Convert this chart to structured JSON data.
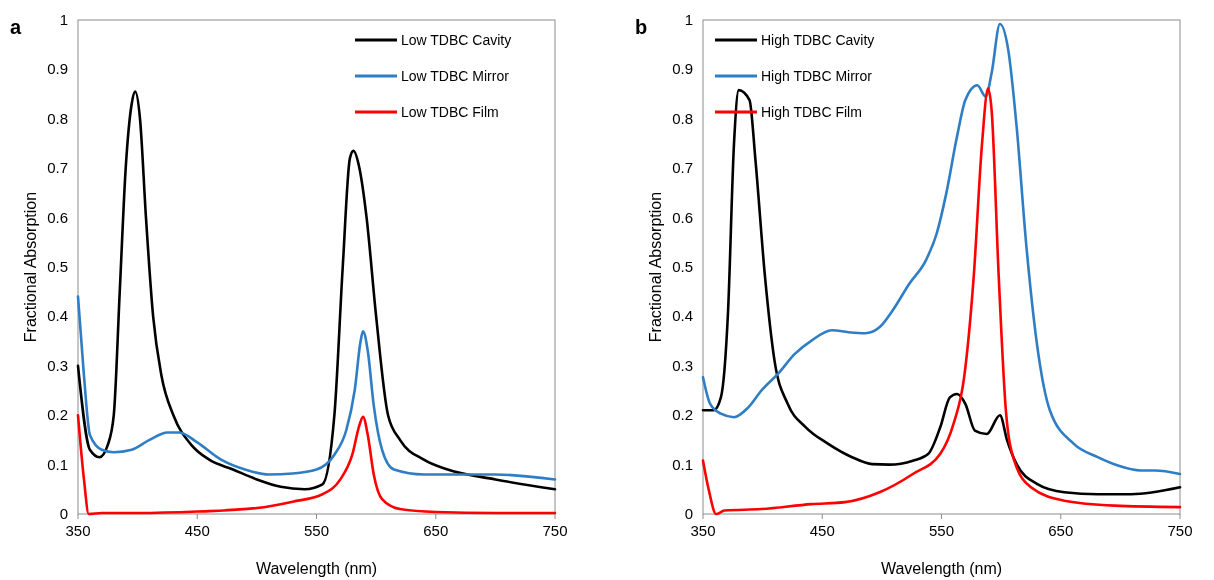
{
  "chart_data": [
    {
      "type": "line",
      "title": "a",
      "xlabel": "Wavelength (nm)",
      "ylabel": "Fractional Absorption",
      "xlim": [
        350,
        750
      ],
      "xticks": [
        350,
        450,
        550,
        650,
        750
      ],
      "ylim": [
        0,
        1
      ],
      "yticks": [
        0,
        0.1,
        0.2,
        0.3,
        0.4,
        0.5,
        0.6,
        0.7,
        0.8,
        0.9,
        1
      ],
      "legend": "top right",
      "series": [
        {
          "name": "Low TDBC Cavity",
          "color": "#000000",
          "x": [
            350,
            360,
            368,
            375,
            380,
            385,
            390,
            395,
            398,
            402,
            407,
            413,
            420,
            430,
            445,
            460,
            480,
            500,
            520,
            540,
            555,
            565,
            572,
            578,
            581,
            586,
            592,
            600,
            610,
            620,
            640,
            660,
            700,
            750
          ],
          "values": [
            0.3,
            0.13,
            0.115,
            0.14,
            0.2,
            0.45,
            0.7,
            0.83,
            0.855,
            0.8,
            0.6,
            0.4,
            0.28,
            0.2,
            0.14,
            0.11,
            0.09,
            0.07,
            0.055,
            0.05,
            0.06,
            0.2,
            0.5,
            0.72,
            0.735,
            0.7,
            0.6,
            0.4,
            0.2,
            0.15,
            0.11,
            0.09,
            0.07,
            0.05
          ]
        },
        {
          "name": "Low TDBC Mirror",
          "color": "#2f7ec5",
          "x": [
            350,
            355,
            360,
            370,
            380,
            395,
            410,
            425,
            435,
            450,
            470,
            490,
            510,
            530,
            550,
            565,
            575,
            582,
            587,
            589,
            593,
            598,
            605,
            615,
            640,
            700,
            750
          ],
          "values": [
            0.44,
            0.28,
            0.16,
            0.13,
            0.125,
            0.13,
            0.15,
            0.165,
            0.165,
            0.145,
            0.11,
            0.09,
            0.08,
            0.082,
            0.09,
            0.12,
            0.17,
            0.25,
            0.35,
            0.37,
            0.33,
            0.22,
            0.13,
            0.09,
            0.08,
            0.08,
            0.07
          ]
        },
        {
          "name": "Low TDBC Film",
          "color": "#ff0000",
          "x": [
            350,
            355,
            359,
            370,
            400,
            450,
            500,
            530,
            555,
            570,
            580,
            586,
            589,
            593,
            598,
            605,
            620,
            650,
            700,
            750
          ],
          "values": [
            0.2,
            0.07,
            0,
            0.002,
            0.002,
            0.005,
            0.012,
            0.025,
            0.04,
            0.07,
            0.12,
            0.18,
            0.197,
            0.16,
            0.08,
            0.03,
            0.01,
            0.004,
            0.002,
            0.002
          ]
        }
      ]
    },
    {
      "type": "line",
      "title": "b",
      "xlabel": "Wavelength (nm)",
      "ylabel": "Fractional Absorption",
      "xlim": [
        350,
        750
      ],
      "xticks": [
        350,
        450,
        550,
        650,
        750
      ],
      "ylim": [
        0,
        1
      ],
      "yticks": [
        0,
        0.1,
        0.2,
        0.3,
        0.4,
        0.5,
        0.6,
        0.7,
        0.8,
        0.9,
        1
      ],
      "legend": "top left",
      "series": [
        {
          "name": "High TDBC Cavity",
          "color": "#000000",
          "x": [
            350,
            359,
            365,
            371,
            376,
            380,
            389,
            394,
            402,
            410,
            421,
            436,
            455,
            475,
            492,
            506,
            526,
            539,
            549,
            557,
            563,
            570,
            578,
            588,
            599,
            605,
            613,
            630,
            653,
            681,
            709,
            750
          ],
          "values": [
            0.21,
            0.21,
            0.236,
            0.41,
            0.75,
            0.858,
            0.838,
            0.716,
            0.48,
            0.31,
            0.223,
            0.176,
            0.142,
            0.115,
            0.101,
            0.1,
            0.108,
            0.122,
            0.176,
            0.236,
            0.243,
            0.223,
            0.169,
            0.162,
            0.2,
            0.149,
            0.101,
            0.061,
            0.044,
            0.04,
            0.04,
            0.054
          ]
        },
        {
          "name": "High TDBC Mirror",
          "color": "#2f7ec5",
          "x": [
            350,
            356,
            365,
            376,
            388,
            399,
            413,
            427,
            441,
            458,
            472,
            486,
            498,
            509,
            523,
            537,
            546,
            554,
            563,
            570,
            580,
            587,
            592,
            599,
            606,
            613,
            621,
            630,
            641,
            661,
            681,
            698,
            717,
            729,
            750
          ],
          "values": [
            0.277,
            0.223,
            0.203,
            0.196,
            0.216,
            0.25,
            0.284,
            0.324,
            0.351,
            0.372,
            0.368,
            0.366,
            0.378,
            0.412,
            0.466,
            0.514,
            0.568,
            0.649,
            0.764,
            0.838,
            0.868,
            0.845,
            0.892,
            0.992,
            0.939,
            0.784,
            0.547,
            0.345,
            0.209,
            0.142,
            0.115,
            0.098,
            0.088,
            0.088,
            0.081
          ]
        },
        {
          "name": "High TDBC Film",
          "color": "#ff0000",
          "x": [
            350,
            355,
            361,
            368,
            399,
            441,
            469,
            498,
            526,
            549,
            560,
            569,
            577,
            584,
            589,
            592,
            598,
            604,
            611,
            625,
            653,
            695,
            750
          ],
          "values": [
            0.108,
            0.047,
            0,
            0.007,
            0.01,
            0.02,
            0.024,
            0.044,
            0.081,
            0.122,
            0.182,
            0.277,
            0.48,
            0.75,
            0.861,
            0.818,
            0.48,
            0.209,
            0.108,
            0.054,
            0.027,
            0.017,
            0.014
          ]
        }
      ]
    }
  ]
}
